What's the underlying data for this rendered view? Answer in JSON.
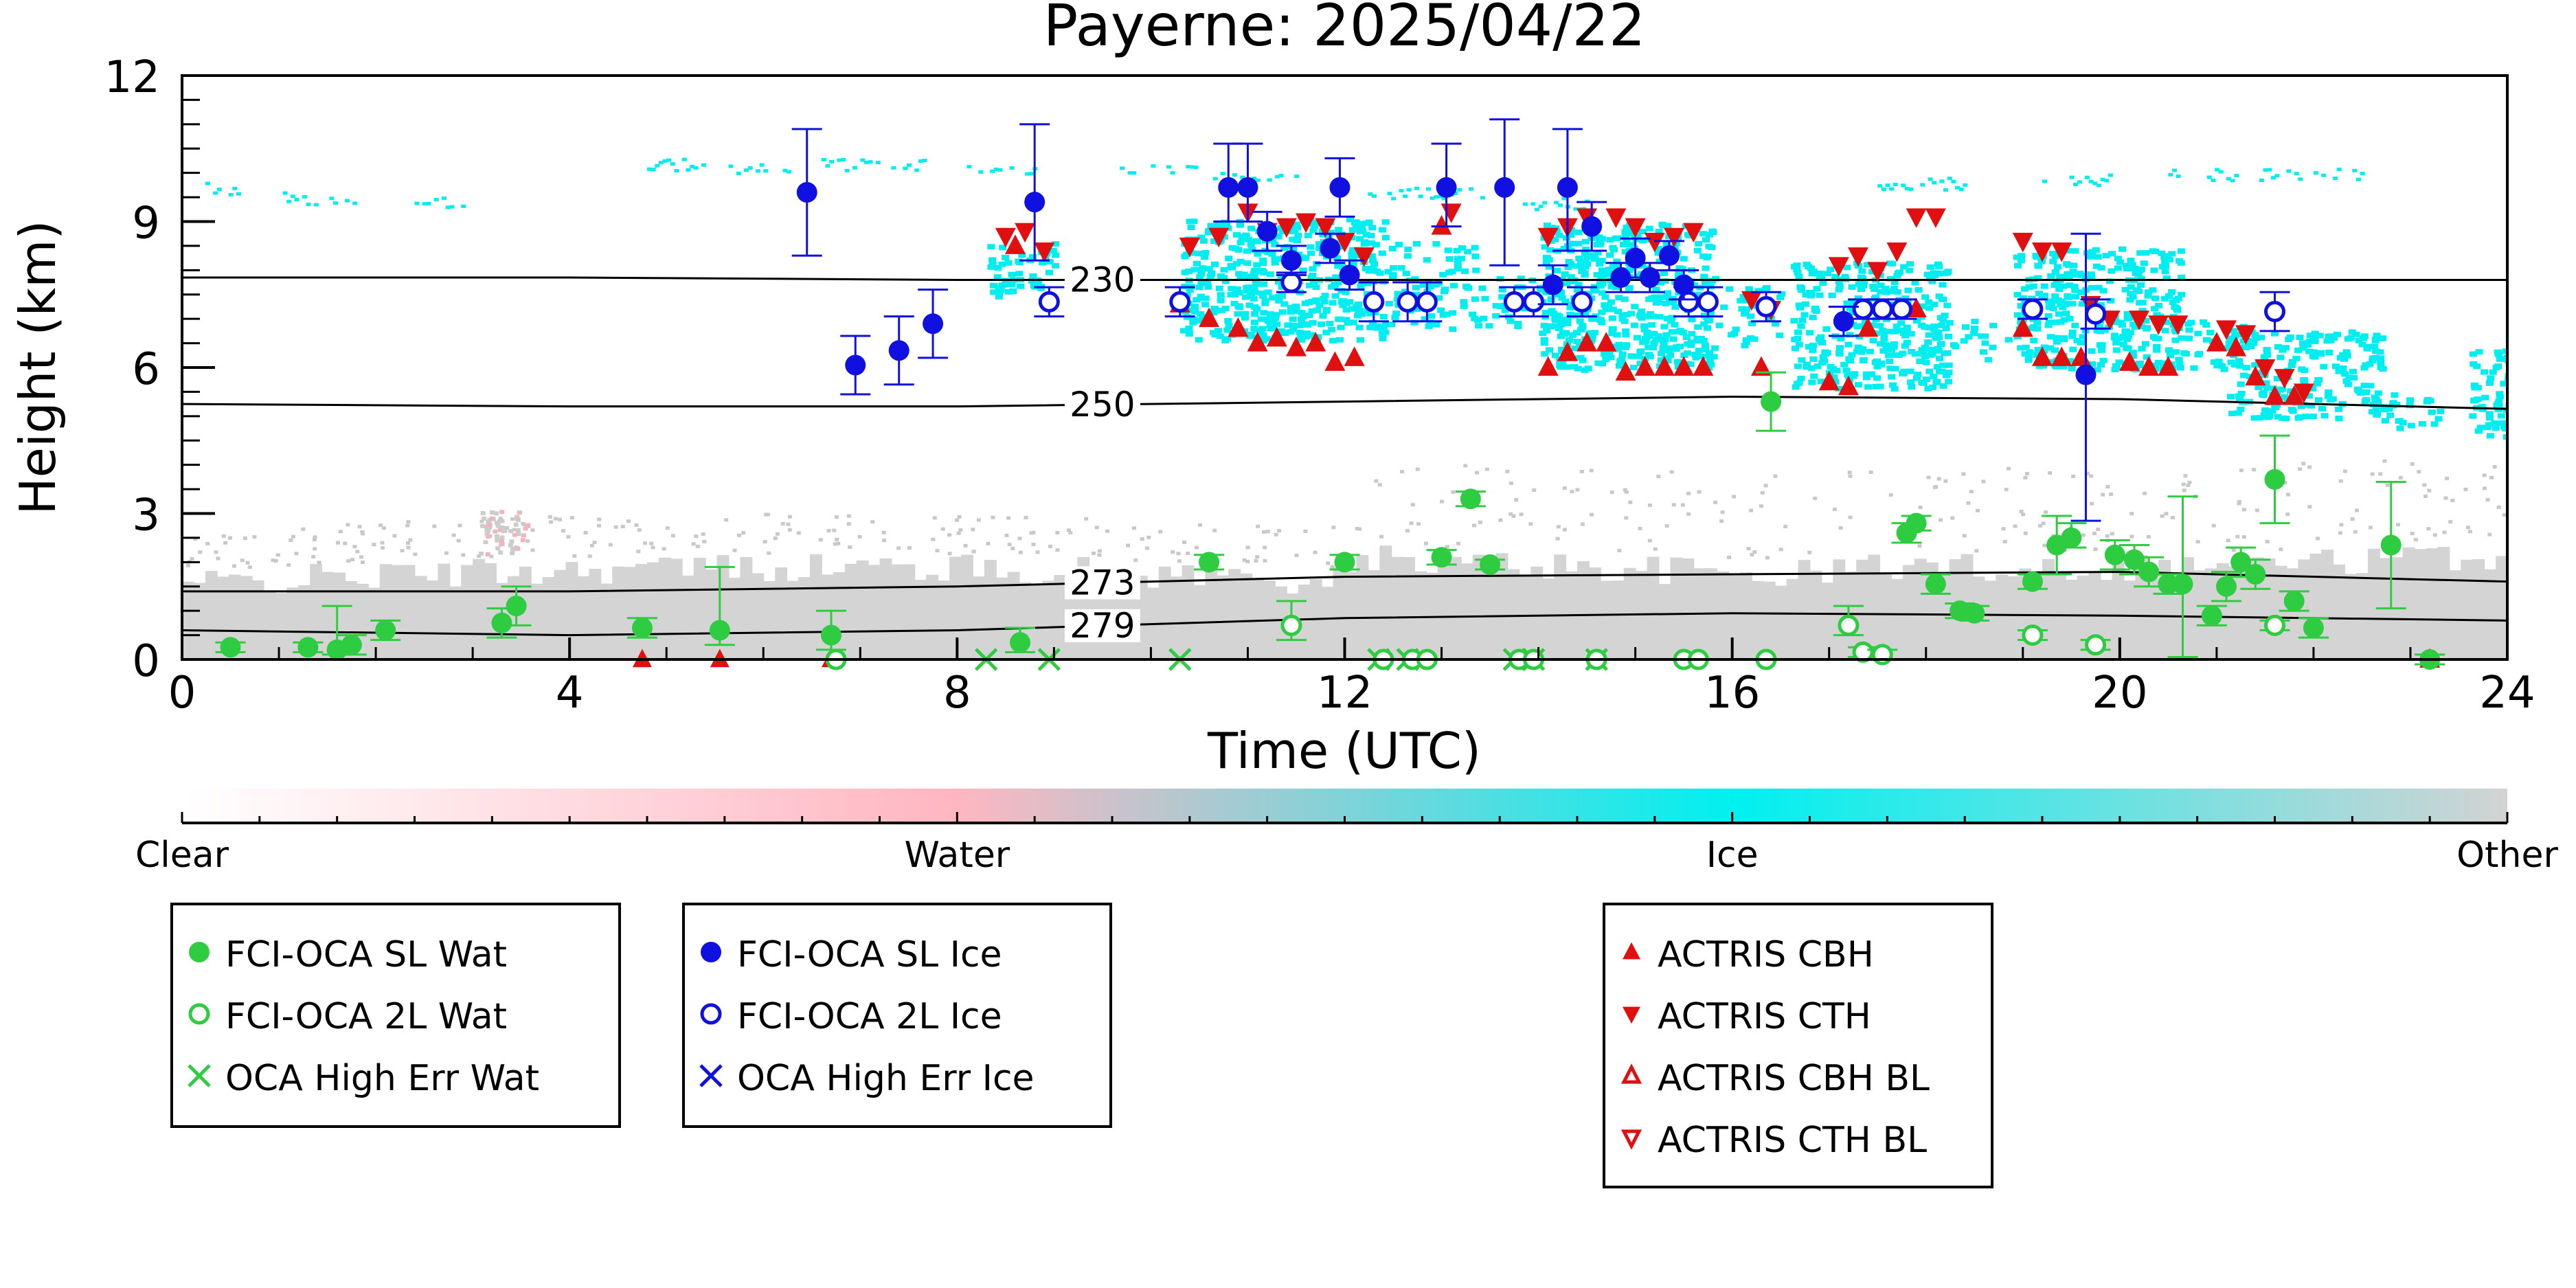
{
  "chart_data": {
    "type": "scatter",
    "title": "Payerne: 2025/04/22",
    "xlabel": "Time (UTC)",
    "ylabel": "Height (km)",
    "xlim": [
      0,
      24
    ],
    "ylim": [
      0,
      12
    ],
    "x_ticks": [
      0,
      4,
      8,
      12,
      16,
      20,
      24
    ],
    "y_ticks": [
      0,
      3,
      6,
      9,
      12
    ],
    "grid": false,
    "isotherms": [
      {
        "label": "230",
        "x": [
          0,
          4,
          8,
          12,
          16,
          20,
          24
        ],
        "y": [
          7.85,
          7.85,
          7.8,
          7.8,
          7.8,
          7.8,
          7.8
        ],
        "label_x": 9.5
      },
      {
        "label": "250",
        "x": [
          0,
          4,
          8,
          12,
          16,
          20,
          24
        ],
        "y": [
          5.25,
          5.2,
          5.2,
          5.3,
          5.4,
          5.35,
          5.15
        ],
        "label_x": 9.5
      },
      {
        "label": "273",
        "x": [
          0,
          4,
          8,
          12,
          16,
          20,
          24
        ],
        "y": [
          1.4,
          1.4,
          1.5,
          1.7,
          1.75,
          1.8,
          1.6
        ],
        "label_x": 9.5
      },
      {
        "label": "279",
        "x": [
          0,
          4,
          8,
          12,
          16,
          20,
          24
        ],
        "y": [
          0.6,
          0.5,
          0.6,
          0.85,
          0.95,
          0.9,
          0.8
        ],
        "label_x": 9.5
      }
    ],
    "series": [
      {
        "name": "FCI-OCA SL Wat",
        "color": "#2ecc40",
        "marker": "filled-circle",
        "x": [
          0.5,
          1.3,
          1.6,
          1.75,
          2.1,
          3.3,
          3.45,
          4.75,
          5.55,
          6.7,
          8.65,
          10.6,
          12.0,
          13.0,
          13.3,
          13.5,
          16.4,
          17.8,
          17.9,
          18.1,
          18.35,
          18.5,
          19.1,
          19.35,
          19.5,
          19.95,
          20.15,
          20.3,
          20.5,
          20.65,
          20.95,
          21.1,
          21.25,
          21.4,
          21.6,
          21.8,
          22.0,
          22.8,
          23.2
        ],
        "y": [
          0.25,
          0.25,
          0.2,
          0.3,
          0.6,
          0.75,
          1.1,
          0.65,
          0.6,
          0.5,
          0.35,
          2.0,
          2.0,
          2.1,
          3.3,
          1.95,
          5.3,
          2.6,
          2.8,
          1.55,
          1.0,
          0.95,
          1.6,
          2.35,
          2.5,
          2.15,
          2.05,
          1.8,
          1.55,
          1.55,
          0.9,
          1.5,
          2.0,
          1.75,
          3.7,
          1.2,
          0.65,
          2.35,
          0.0
        ],
        "err_lo": [
          0.1,
          0.1,
          0.1,
          0.2,
          0.2,
          0.3,
          0.4,
          0.2,
          0.3,
          0.3,
          0.2,
          0.15,
          0.15,
          0.15,
          0.15,
          0.1,
          0.6,
          0.2,
          0.15,
          0.2,
          0.15,
          0.15,
          0.15,
          0.6,
          0.2,
          0.3,
          0.3,
          0.3,
          0.2,
          1.5,
          0.2,
          0.3,
          0.3,
          0.3,
          0.9,
          0.2,
          0.2,
          1.3,
          0.1
        ],
        "err_hi": [
          0.1,
          0.1,
          0.9,
          0.2,
          0.2,
          0.3,
          0.4,
          0.2,
          1.3,
          0.5,
          0.3,
          0.15,
          0.15,
          0.15,
          0.15,
          0.1,
          0.6,
          0.2,
          0.15,
          0.2,
          0.15,
          0.15,
          0.15,
          0.6,
          0.3,
          0.3,
          0.3,
          0.3,
          0.2,
          1.8,
          0.2,
          0.3,
          0.3,
          0.3,
          0.9,
          0.2,
          0.2,
          1.3,
          0.1
        ]
      },
      {
        "name": "FCI-OCA 2L Wat",
        "color": "#2ecc40",
        "marker": "open-circle",
        "x": [
          6.75,
          11.45,
          12.4,
          12.7,
          12.85,
          13.8,
          13.95,
          14.6,
          15.5,
          15.65,
          16.35,
          17.2,
          17.35,
          17.55,
          19.1,
          19.75,
          21.6
        ],
        "y": [
          0.0,
          0.7,
          0.0,
          0.0,
          0.0,
          0.0,
          0.0,
          0.0,
          0.0,
          0.0,
          0.0,
          0.7,
          0.15,
          0.1,
          0.5,
          0.3,
          0.7
        ],
        "err_lo": [
          0,
          0.3,
          0,
          0,
          0,
          0,
          0,
          0,
          0,
          0,
          0,
          0.2,
          0.1,
          0.1,
          0.1,
          0.1,
          0.1
        ],
        "err_hi": [
          0,
          0.5,
          0,
          0,
          0,
          0,
          0,
          0,
          0,
          0,
          0,
          0.4,
          0.1,
          0.1,
          0.1,
          0.1,
          0.1
        ]
      },
      {
        "name": "OCA High Err Wat",
        "color": "#2ecc40",
        "marker": "x",
        "x": [
          8.3,
          8.95,
          10.3,
          12.35,
          12.65,
          13.75,
          13.95,
          14.6
        ],
        "y": [
          0.0,
          0.0,
          0.0,
          0.0,
          0.0,
          0.0,
          0.0,
          0.0
        ]
      },
      {
        "name": "FCI-OCA SL Ice",
        "color": "#1010e0",
        "marker": "filled-circle",
        "x": [
          6.45,
          6.95,
          7.4,
          7.75,
          8.8,
          10.8,
          11.0,
          11.2,
          11.45,
          11.85,
          11.95,
          12.05,
          13.05,
          13.65,
          14.15,
          14.3,
          14.55,
          14.85,
          15.0,
          15.15,
          15.35,
          15.5,
          17.15,
          19.65
        ],
        "y": [
          9.6,
          6.05,
          6.35,
          6.9,
          9.4,
          9.7,
          9.7,
          8.8,
          8.2,
          8.45,
          9.7,
          7.9,
          9.7,
          9.7,
          7.7,
          9.7,
          8.9,
          7.85,
          8.25,
          7.85,
          8.3,
          7.7,
          6.95,
          5.85
        ],
        "err_lo": [
          1.3,
          0.6,
          0.7,
          0.7,
          1.2,
          0.7,
          0.7,
          0.4,
          0.3,
          0.3,
          0.6,
          0.3,
          0.8,
          1.6,
          0.4,
          1.3,
          0.5,
          0.3,
          0.4,
          0.3,
          0.3,
          0.3,
          0.3,
          3.0
        ],
        "err_hi": [
          1.3,
          0.6,
          0.7,
          0.7,
          1.6,
          0.9,
          0.9,
          0.4,
          0.3,
          0.3,
          0.6,
          0.3,
          0.9,
          1.4,
          0.4,
          1.2,
          0.5,
          0.3,
          0.4,
          0.3,
          0.3,
          0.3,
          0.3,
          2.9
        ]
      },
      {
        "name": "FCI-OCA 2L Ice",
        "color": "#1010e0",
        "marker": "open-circle",
        "x": [
          8.95,
          10.3,
          11.45,
          12.3,
          12.65,
          12.85,
          13.75,
          13.95,
          14.45,
          15.55,
          15.75,
          16.35,
          17.35,
          17.55,
          17.75,
          19.1,
          19.75,
          21.6
        ],
        "y": [
          7.35,
          7.35,
          7.75,
          7.35,
          7.35,
          7.35,
          7.35,
          7.35,
          7.35,
          7.35,
          7.35,
          7.25,
          7.2,
          7.2,
          7.2,
          7.2,
          7.1,
          7.15
        ],
        "err_lo": [
          0.3,
          0.3,
          0.2,
          0.4,
          0.4,
          0.4,
          0.3,
          0.3,
          0.3,
          0.3,
          0.3,
          0.3,
          0.2,
          0.2,
          0.2,
          0.2,
          0.3,
          0.4
        ],
        "err_hi": [
          0.3,
          0.3,
          0.2,
          0.4,
          0.4,
          0.4,
          0.3,
          0.3,
          0.3,
          0.3,
          0.3,
          0.3,
          0.2,
          0.2,
          0.2,
          0.2,
          0.3,
          0.4
        ]
      },
      {
        "name": "OCA High Err Ice",
        "color": "#1010e0",
        "marker": "x",
        "x": [],
        "y": []
      },
      {
        "name": "ACTRIS CBH",
        "color": "#e01010",
        "marker": "triangle-up",
        "x": [
          8.6,
          10.3,
          10.6,
          10.9,
          11.1,
          11.3,
          11.5,
          11.7,
          11.9,
          12.1,
          13.0,
          14.1,
          14.3,
          14.5,
          14.7,
          14.9,
          15.1,
          15.3,
          15.5,
          15.7,
          16.3,
          17.0,
          17.2,
          17.4,
          17.9,
          19.0,
          19.2,
          19.4,
          19.6,
          20.1,
          20.3,
          20.5,
          21.0,
          21.2,
          21.4,
          21.6,
          21.8,
          23.2
        ],
        "y": [
          8.5,
          7.3,
          7.0,
          6.8,
          6.5,
          6.6,
          6.4,
          6.5,
          6.1,
          6.2,
          8.9,
          6.0,
          6.3,
          6.5,
          6.5,
          5.9,
          6.0,
          6.0,
          6.0,
          6.0,
          6.0,
          5.7,
          5.6,
          6.8,
          7.2,
          6.8,
          6.2,
          6.2,
          6.2,
          6.1,
          6.0,
          6.0,
          6.5,
          6.4,
          5.8,
          5.4,
          5.4,
          0.0
        ],
        "x2": [
          4.75,
          5.55,
          6.7
        ],
        "y2": [
          0.0,
          0.0,
          0.0
        ]
      },
      {
        "name": "ACTRIS CTH",
        "color": "#e01010",
        "marker": "triangle-down",
        "x": [
          8.5,
          8.7,
          8.9,
          10.4,
          10.7,
          11.0,
          11.2,
          11.4,
          11.6,
          11.8,
          12.0,
          12.2,
          13.1,
          14.1,
          14.3,
          14.5,
          14.8,
          15.0,
          15.2,
          15.4,
          15.6,
          16.2,
          16.4,
          17.1,
          17.3,
          17.5,
          17.7,
          17.9,
          18.1,
          19.0,
          19.2,
          19.4,
          19.7,
          19.9,
          20.2,
          20.4,
          20.6,
          21.1,
          21.3,
          21.5,
          21.7,
          21.9
        ],
        "y": [
          8.7,
          8.8,
          8.4,
          8.5,
          8.7,
          9.2,
          8.8,
          8.9,
          9.0,
          8.9,
          8.6,
          8.3,
          9.2,
          8.7,
          8.9,
          9.1,
          9.1,
          8.9,
          8.6,
          8.7,
          8.8,
          7.4,
          7.2,
          8.1,
          8.3,
          8.0,
          8.4,
          9.1,
          9.1,
          8.6,
          8.4,
          8.4,
          7.3,
          7.0,
          7.0,
          6.9,
          6.9,
          6.8,
          6.7,
          6.0,
          5.8,
          5.5
        ]
      },
      {
        "name": "ACTRIS CBH BL",
        "color": "#e01010",
        "marker": "open-triangle-up",
        "x": [],
        "y": []
      },
      {
        "name": "ACTRIS CTH BL",
        "color": "#e01010",
        "marker": "open-triangle-down",
        "x": [],
        "y": []
      }
    ],
    "colorbar": {
      "labels": [
        "Clear",
        "Water",
        "Ice",
        "Other"
      ],
      "colors": [
        "#ffffff",
        "#ffb6c1",
        "#00f0f0",
        "#d3d3d3"
      ]
    },
    "legend": {
      "placement": "below",
      "groups": [
        [
          "FCI-OCA SL Wat",
          "FCI-OCA 2L Wat",
          "OCA High Err Wat"
        ],
        [
          "FCI-OCA SL Ice",
          "FCI-OCA 2L Ice",
          "OCA High Err Ice"
        ],
        [
          "ACTRIS CBH",
          "ACTRIS CTH",
          "ACTRIS CBH BL",
          "ACTRIS CTH BL"
        ]
      ]
    }
  }
}
